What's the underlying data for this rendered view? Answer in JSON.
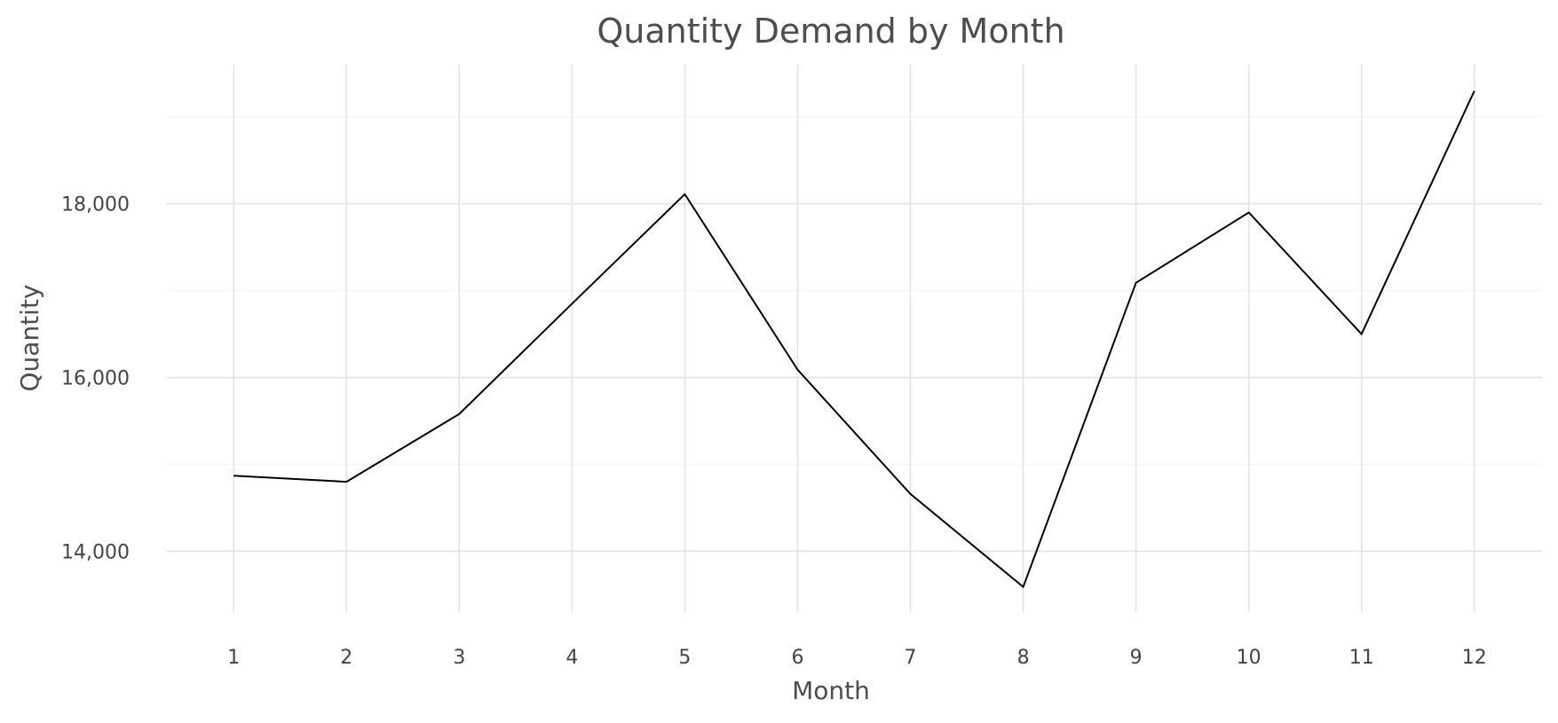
{
  "chart_data": {
    "type": "line",
    "title": "Quantity Demand by Month",
    "xlabel": "Month",
    "ylabel": "Quantity",
    "x": [
      1,
      2,
      3,
      4,
      5,
      6,
      7,
      8,
      9,
      10,
      11,
      12
    ],
    "x_tick_labels": [
      "1",
      "2",
      "3",
      "4",
      "5",
      "6",
      "7",
      "8",
      "9",
      "10",
      "11",
      "12"
    ],
    "series": [
      {
        "values": [
          14870,
          14800,
          15580,
          16850,
          18110,
          16090,
          14660,
          13590,
          17090,
          17900,
          16500,
          19300
        ],
        "color": "#000000"
      }
    ],
    "y_ticks": [
      14000,
      16000,
      18000
    ],
    "y_tick_labels": [
      "14,000",
      "16,000",
      "18,000"
    ],
    "xlim": [
      0.4,
      12.6
    ],
    "ylim": [
      13300,
      19600
    ],
    "grid": true,
    "legend": "none"
  }
}
